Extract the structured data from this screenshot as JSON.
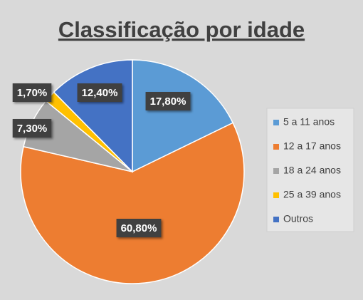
{
  "chart_data": {
    "type": "pie",
    "title": "Classificação por idade",
    "categories": [
      "5 a 11 anos",
      "12 a 17 anos",
      "18 a 24 anos",
      "25 a 39 anos",
      "Outros"
    ],
    "values": [
      17.8,
      60.8,
      7.3,
      1.7,
      12.4
    ],
    "value_labels": [
      "17,80%",
      "60,80%",
      "7,30%",
      "1,70%",
      "12,40%"
    ],
    "colors": [
      "#5b9bd5",
      "#ed7d31",
      "#a5a5a5",
      "#ffc000",
      "#4472c4"
    ],
    "legend": "right"
  }
}
